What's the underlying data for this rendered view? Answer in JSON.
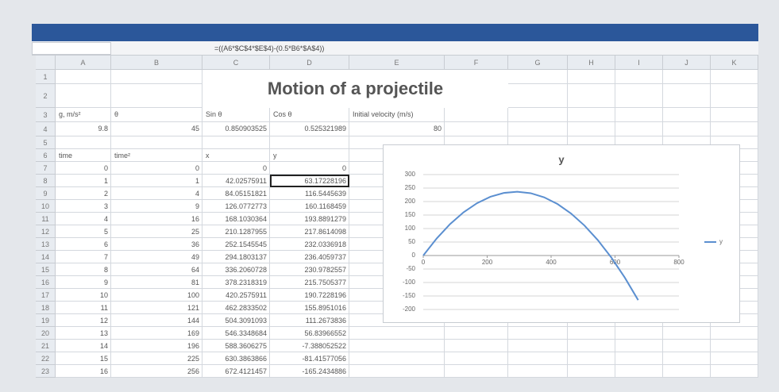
{
  "sheet": {
    "formula": "=((A6*$C$4*$E$4)-(0.5*B6*$A$4))",
    "columns": [
      "A",
      "B",
      "C",
      "D",
      "E",
      "F",
      "G",
      "H",
      "I",
      "J",
      "K"
    ],
    "row_numbers": [
      1,
      2,
      3,
      4,
      5,
      6,
      7,
      8,
      9,
      10,
      11,
      12,
      13,
      14,
      15,
      16,
      17,
      18,
      19,
      20,
      21,
      22,
      23
    ],
    "title": "Motion of a projectile",
    "params": {
      "labels": [
        "g, m/s²",
        "θ",
        "Sin θ",
        "Cos θ",
        "Initial velocity (m/s)"
      ],
      "values": [
        9.8,
        45,
        0.850903525,
        0.525321989,
        80
      ]
    },
    "table": {
      "header": [
        "time",
        "time²",
        "x",
        "y"
      ],
      "rows": [
        [
          0,
          0,
          0,
          0
        ],
        [
          1,
          1,
          42.02575911,
          63.17228196
        ],
        [
          2,
          4,
          84.05151821,
          116.5445639
        ],
        [
          3,
          9,
          126.0772773,
          160.1168459
        ],
        [
          4,
          16,
          168.1030364,
          193.8891279
        ],
        [
          5,
          25,
          210.1287955,
          217.8614098
        ],
        [
          6,
          36,
          252.1545545,
          232.0336918
        ],
        [
          7,
          49,
          294.1803137,
          236.4059737
        ],
        [
          8,
          64,
          336.2060728,
          230.9782557
        ],
        [
          9,
          81,
          378.2318319,
          215.7505377
        ],
        [
          10,
          100,
          420.2575911,
          190.7228196
        ],
        [
          11,
          121,
          462.2833502,
          155.8951016
        ],
        [
          12,
          144,
          504.3091093,
          111.2673836
        ],
        [
          13,
          169,
          546.3348684,
          56.83966552
        ],
        [
          14,
          196,
          588.3606275,
          -7.388052522
        ],
        [
          15,
          225,
          630.3863866,
          -81.41577056
        ],
        [
          16,
          256,
          672.4121457,
          -165.2434886
        ]
      ]
    },
    "chart": {
      "type": "scatter",
      "title": "y",
      "legend": "y",
      "legend_position": "right",
      "color": "#5b8fd0",
      "grid": true,
      "xlim": [
        0,
        800
      ],
      "xticks": [
        0,
        200,
        400,
        600,
        800
      ],
      "ylim": [
        -200,
        300
      ],
      "yticks": [
        300,
        250,
        200,
        150,
        100,
        50,
        0,
        -50,
        -100,
        -150,
        -200
      ]
    }
  }
}
